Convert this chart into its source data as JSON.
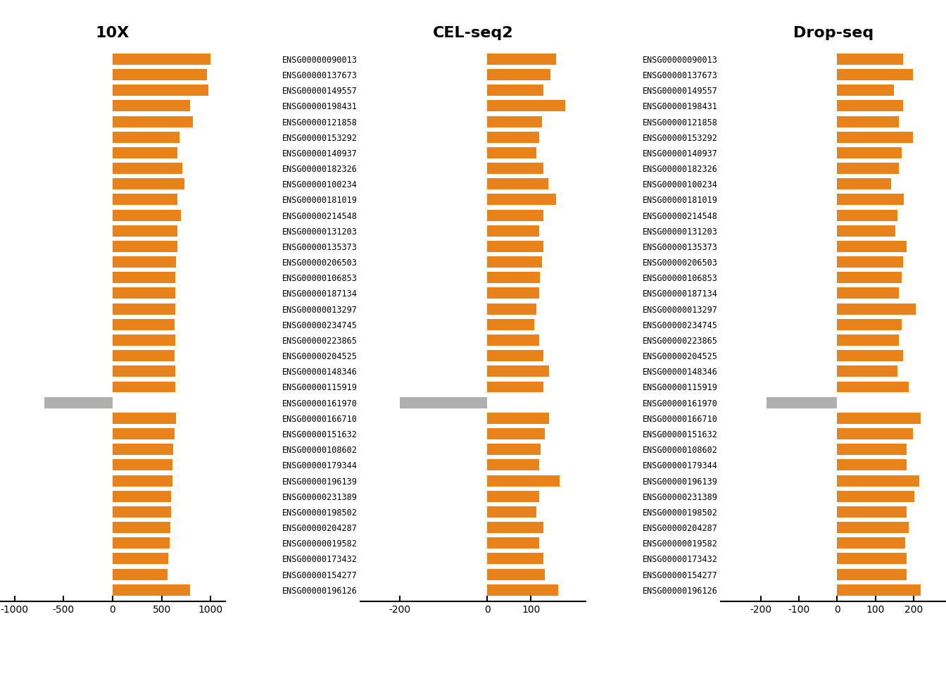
{
  "genes": [
    "ENSG00000090013",
    "ENSG00000137673",
    "ENSG00000149557",
    "ENSG00000198431",
    "ENSG00000121858",
    "ENSG00000153292",
    "ENSG00000140937",
    "ENSG00000182326",
    "ENSG00000100234",
    "ENSG00000181019",
    "ENSG00000214548",
    "ENSG00000131203",
    "ENSG00000135373",
    "ENSG00000206503",
    "ENSG00000106853",
    "ENSG00000187134",
    "ENSG00000013297",
    "ENSG00000234745",
    "ENSG00000223865",
    "ENSG00000204525",
    "ENSG00000148346",
    "ENSG00000115919",
    "ENSG00000161970",
    "ENSG00000166710",
    "ENSG00000151632",
    "ENSG00000108602",
    "ENSG00000179344",
    "ENSG00000196139",
    "ENSG00000231389",
    "ENSG00000198502",
    "ENSG00000204287",
    "ENSG00000019582",
    "ENSG00000173432",
    "ENSG00000154277",
    "ENSG00000196126"
  ],
  "10X": {
    "values": [
      1000,
      960,
      980,
      790,
      820,
      680,
      660,
      710,
      730,
      660,
      700,
      660,
      660,
      650,
      640,
      640,
      640,
      630,
      640,
      630,
      640,
      640,
      -700,
      650,
      630,
      620,
      610,
      610,
      600,
      595,
      590,
      580,
      570,
      560,
      790
    ],
    "xlim": [
      -1150,
      1150
    ],
    "xticks": [
      -1000,
      -500,
      0,
      500,
      1000
    ],
    "xticklabels": [
      "-1000",
      "-500",
      "0",
      "500",
      "1000"
    ],
    "title": "10X"
  },
  "CEL-seq2": {
    "values": [
      158,
      145,
      128,
      178,
      125,
      118,
      112,
      128,
      140,
      158,
      128,
      118,
      128,
      125,
      120,
      118,
      112,
      108,
      118,
      128,
      142,
      128,
      -200,
      142,
      132,
      122,
      118,
      165,
      118,
      112,
      128,
      118,
      128,
      132,
      162
    ],
    "xlim": [
      -290,
      225
    ],
    "xticks": [
      -200,
      0,
      100
    ],
    "xticklabels": [
      "-200",
      "0",
      "100"
    ],
    "title": "CEL-seq2"
  },
  "Drop-seq": {
    "values": [
      172,
      198,
      148,
      172,
      162,
      198,
      168,
      162,
      142,
      175,
      158,
      152,
      182,
      172,
      168,
      162,
      205,
      168,
      162,
      172,
      158,
      188,
      -185,
      218,
      198,
      182,
      182,
      215,
      202,
      182,
      188,
      178,
      182,
      182,
      218
    ],
    "xlim": [
      -305,
      285
    ],
    "xticks": [
      -200,
      -100,
      0,
      100,
      200
    ],
    "xticklabels": [
      "-200",
      "-100",
      "0",
      "100",
      "200"
    ],
    "title": "Drop-seq"
  },
  "orange_color": "#E8821A",
  "gray_color": "#B0B0B0",
  "negative_gene_index": 22,
  "background_color": "#FFFFFF",
  "bar_height": 0.72,
  "title_fontsize": 16,
  "label_fontsize": 8.5,
  "tick_fontsize": 10
}
